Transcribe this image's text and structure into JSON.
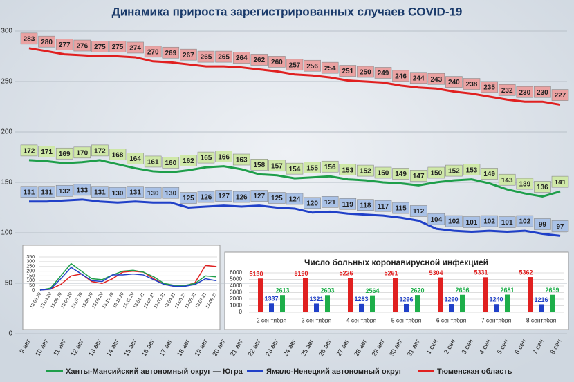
{
  "chart_data": [
    {
      "type": "line",
      "title": "Динамика прироста зарегистрированных случаев COVID-19",
      "categories": [
        "9 авг",
        "10 авг",
        "11 авг",
        "12 авг",
        "13 авг",
        "14 авг",
        "15 авг",
        "16 авг",
        "17 авг",
        "18 авг",
        "19 авг",
        "20 авг",
        "21 авг",
        "22 авг",
        "23 авг",
        "24 авг",
        "25 авг",
        "26 авг",
        "27 авг",
        "28 авг",
        "29 авг",
        "30 авг",
        "31 авг",
        "1 сен",
        "2 сен",
        "3 сен",
        "4 сен",
        "5 сен",
        "6 сен",
        "7 сен",
        "8 сен"
      ],
      "series": [
        {
          "name": "Ханты-Мансийский автономный округ — Югра",
          "color": "#1e9e4a",
          "label_color": "#cfe8a8",
          "values": [
            172,
            171,
            169,
            170,
            172,
            168,
            164,
            161,
            160,
            162,
            165,
            166,
            163,
            158,
            157,
            154,
            155,
            156,
            153,
            152,
            150,
            149,
            147,
            150,
            152,
            153,
            149,
            143,
            139,
            136,
            141
          ]
        },
        {
          "name": "Ямало-Ненецкий автономный округ",
          "color": "#2040c8",
          "label_color": "#a9c1e6",
          "values": [
            131,
            131,
            132,
            133,
            131,
            130,
            131,
            130,
            130,
            125,
            126,
            127,
            126,
            127,
            125,
            124,
            120,
            121,
            119,
            118,
            117,
            115,
            112,
            104,
            102,
            101,
            102,
            101,
            102,
            99,
            97
          ]
        },
        {
          "name": "Тюменская область",
          "color": "#e02020",
          "label_color": "#eaa2a2",
          "values": [
            283,
            280,
            277,
            276,
            275,
            275,
            274,
            270,
            269,
            267,
            265,
            265,
            264,
            262,
            260,
            257,
            256,
            254,
            251,
            250,
            249,
            246,
            244,
            243,
            240,
            238,
            235,
            232,
            230,
            230,
            227
          ]
        }
      ],
      "ylim": [
        0,
        300
      ],
      "yticks": [
        0,
        50,
        100,
        150,
        200,
        250,
        300
      ],
      "grid": true,
      "legend": "bottom"
    },
    {
      "type": "line",
      "categories": [
        "15.03.20",
        "15.04.20",
        "15.05.20",
        "15.06.20",
        "15.07.20",
        "15.08.20",
        "15.09.20",
        "15.10.20",
        "15.11.20",
        "15.12.20",
        "15.01.21",
        "15.02.21",
        "15.03.21",
        "15.04.21",
        "15.05.21",
        "15.06.21",
        "15.07.21",
        "15.08.21"
      ],
      "series": [
        {
          "color": "#e02020",
          "values": [
            0,
            10,
            60,
            150,
            170,
            90,
            70,
            120,
            190,
            200,
            190,
            120,
            60,
            40,
            40,
            80,
            260,
            250
          ]
        },
        {
          "color": "#1e9e4a",
          "values": [
            0,
            20,
            150,
            280,
            200,
            120,
            110,
            160,
            200,
            210,
            190,
            140,
            70,
            50,
            50,
            70,
            150,
            140
          ]
        },
        {
          "color": "#2040c8",
          "values": [
            0,
            10,
            120,
            240,
            170,
            100,
            90,
            160,
            160,
            170,
            160,
            110,
            60,
            40,
            40,
            60,
            120,
            100
          ]
        }
      ],
      "ylim": [
        0,
        350
      ],
      "yticks": [
        0,
        50,
        100,
        150,
        200,
        250,
        300,
        350
      ],
      "grid": true
    },
    {
      "type": "bar",
      "title": "Число больных  коронавирусной  инфекцией",
      "categories": [
        "2 сентября",
        "3 сентября",
        "4 сентября",
        "5 сентября",
        "6 сентября",
        "7 сентября",
        "8 сентября"
      ],
      "series": [
        {
          "color": "#e02020",
          "values": [
            5130,
            5190,
            5226,
            5261,
            5304,
            5331,
            5362
          ]
        },
        {
          "color": "#2040c8",
          "values": [
            1337,
            1321,
            1283,
            1266,
            1260,
            1240,
            1216
          ]
        },
        {
          "color": "#1eae4a",
          "values": [
            2613,
            2603,
            2564,
            2620,
            2656,
            2681,
            2659
          ]
        }
      ],
      "ylim": [
        0,
        6000
      ],
      "yticks": [
        0,
        1000,
        2000,
        3000,
        4000,
        5000,
        6000
      ],
      "grid": true
    }
  ]
}
